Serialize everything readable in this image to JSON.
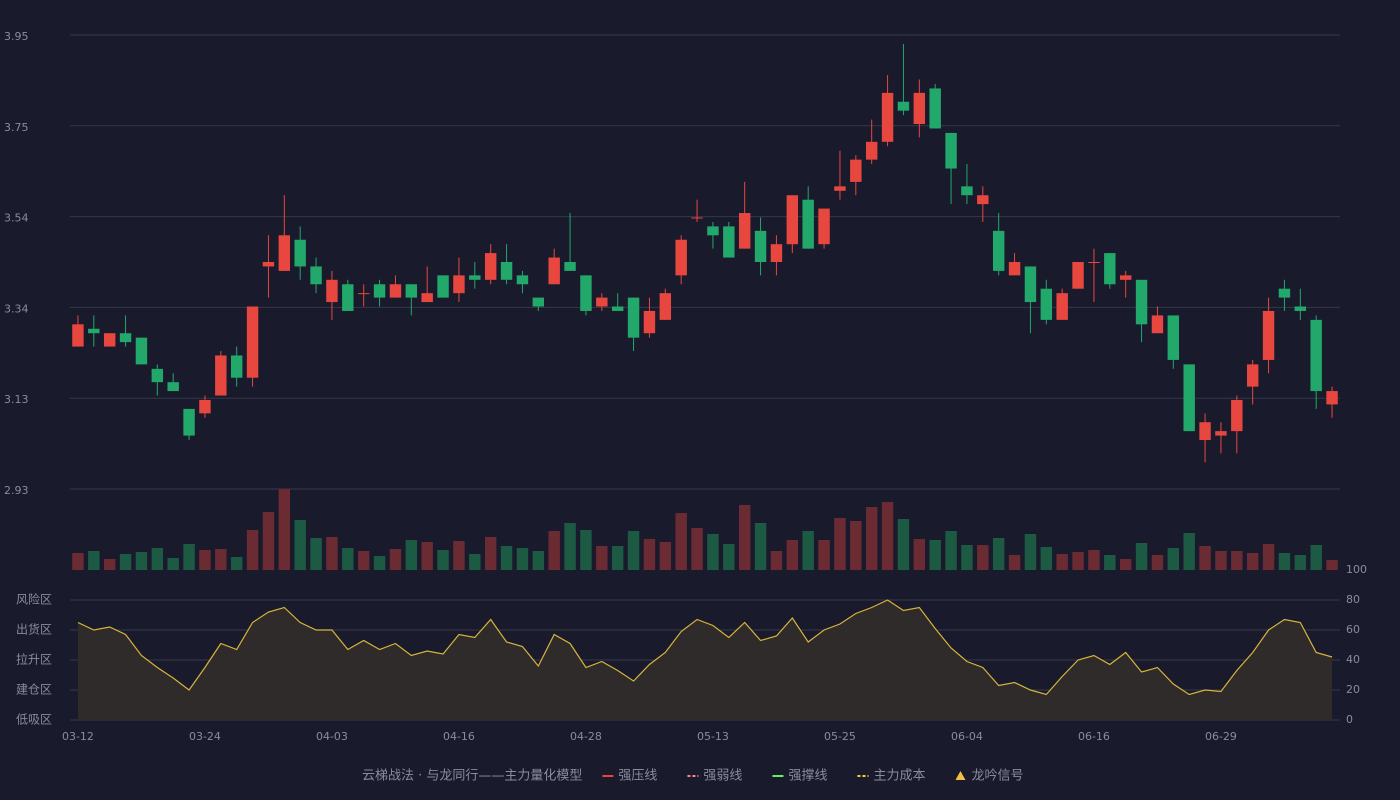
{
  "chart_data": {
    "type": "candlestick",
    "categories": [
      "03-12",
      null,
      null,
      null,
      null,
      null,
      null,
      null,
      "03-24",
      null,
      null,
      null,
      null,
      null,
      null,
      null,
      "04-03",
      null,
      null,
      null,
      null,
      null,
      null,
      null,
      "04-16",
      null,
      null,
      null,
      null,
      null,
      null,
      null,
      "04-28",
      null,
      null,
      null,
      null,
      null,
      null,
      null,
      "05-13",
      null,
      null,
      null,
      null,
      null,
      null,
      null,
      "05-25",
      null,
      null,
      null,
      null,
      null,
      null,
      null,
      "06-04",
      null,
      null,
      null,
      null,
      null,
      null,
      null,
      "06-16",
      null,
      null,
      null,
      null,
      null,
      null,
      null,
      "06-29",
      null,
      null,
      null,
      null,
      null,
      null,
      null
    ],
    "open": [
      3.25,
      3.29,
      3.25,
      3.28,
      3.27,
      3.2,
      3.17,
      3.11,
      3.1,
      3.14,
      3.23,
      3.18,
      3.43,
      3.42,
      3.49,
      3.43,
      3.35,
      3.39,
      3.37,
      3.39,
      3.36,
      3.39,
      3.35,
      3.41,
      3.37,
      3.41,
      3.4,
      3.44,
      3.41,
      3.36,
      3.39,
      3.44,
      3.41,
      3.34,
      3.34,
      3.36,
      3.28,
      3.31,
      3.41,
      3.54,
      3.52,
      3.52,
      3.47,
      3.51,
      3.44,
      3.48,
      3.58,
      3.48,
      3.6,
      3.62,
      3.67,
      3.71,
      3.8,
      3.75,
      3.83,
      3.73,
      3.61,
      3.57,
      3.51,
      3.41,
      3.43,
      3.38,
      3.31,
      3.38,
      3.44,
      3.46,
      3.4,
      3.4,
      3.28,
      3.32,
      3.21,
      3.04,
      3.05,
      3.06,
      3.16,
      3.22,
      3.38,
      3.34,
      3.31,
      3.12
    ],
    "close": [
      3.3,
      3.28,
      3.28,
      3.26,
      3.21,
      3.17,
      3.15,
      3.05,
      3.13,
      3.23,
      3.18,
      3.34,
      3.44,
      3.5,
      3.43,
      3.39,
      3.4,
      3.33,
      3.37,
      3.36,
      3.39,
      3.36,
      3.37,
      3.36,
      3.41,
      3.4,
      3.46,
      3.4,
      3.39,
      3.34,
      3.45,
      3.42,
      3.33,
      3.36,
      3.33,
      3.27,
      3.33,
      3.37,
      3.49,
      3.54,
      3.5,
      3.45,
      3.55,
      3.44,
      3.48,
      3.59,
      3.47,
      3.56,
      3.61,
      3.67,
      3.71,
      3.82,
      3.78,
      3.82,
      3.74,
      3.65,
      3.59,
      3.59,
      3.42,
      3.44,
      3.35,
      3.31,
      3.37,
      3.44,
      3.44,
      3.39,
      3.41,
      3.3,
      3.32,
      3.22,
      3.06,
      3.08,
      3.06,
      3.13,
      3.21,
      3.33,
      3.36,
      3.33,
      3.15,
      3.15
    ],
    "high": [
      3.32,
      3.32,
      3.28,
      3.32,
      3.27,
      3.21,
      3.19,
      3.11,
      3.14,
      3.24,
      3.25,
      3.34,
      3.5,
      3.59,
      3.52,
      3.45,
      3.42,
      3.4,
      3.39,
      3.4,
      3.41,
      3.39,
      3.43,
      3.41,
      3.45,
      3.44,
      3.48,
      3.48,
      3.42,
      3.36,
      3.47,
      3.55,
      3.41,
      3.37,
      3.37,
      3.36,
      3.36,
      3.38,
      3.5,
      3.58,
      3.53,
      3.53,
      3.62,
      3.54,
      3.5,
      3.59,
      3.61,
      3.56,
      3.69,
      3.68,
      3.76,
      3.86,
      3.93,
      3.85,
      3.84,
      3.73,
      3.66,
      3.61,
      3.55,
      3.46,
      3.43,
      3.4,
      3.38,
      3.44,
      3.47,
      3.46,
      3.42,
      3.4,
      3.34,
      3.32,
      3.21,
      3.1,
      3.08,
      3.14,
      3.22,
      3.36,
      3.4,
      3.38,
      3.32,
      3.16
    ],
    "low": [
      3.25,
      3.25,
      3.25,
      3.25,
      3.21,
      3.14,
      3.15,
      3.04,
      3.09,
      3.14,
      3.16,
      3.16,
      3.36,
      3.42,
      3.4,
      3.37,
      3.31,
      3.33,
      3.34,
      3.34,
      3.36,
      3.32,
      3.35,
      3.36,
      3.35,
      3.38,
      3.39,
      3.39,
      3.37,
      3.33,
      3.39,
      3.42,
      3.32,
      3.33,
      3.33,
      3.24,
      3.27,
      3.31,
      3.39,
      3.53,
      3.47,
      3.45,
      3.47,
      3.41,
      3.41,
      3.46,
      3.47,
      3.47,
      3.58,
      3.59,
      3.66,
      3.7,
      3.77,
      3.72,
      3.74,
      3.57,
      3.57,
      3.53,
      3.41,
      3.41,
      3.28,
      3.3,
      3.31,
      3.38,
      3.35,
      3.38,
      3.36,
      3.26,
      3.28,
      3.2,
      3.06,
      2.99,
      3.01,
      3.01,
      3.12,
      3.19,
      3.33,
      3.31,
      3.11,
      3.09
    ],
    "up_color": "#e8473f",
    "down_color": "#21a86a",
    "ylim": [
      2.93,
      3.95
    ],
    "yticks": [
      {
        "value": 3.95,
        "label": "3.95"
      },
      {
        "value": 3.746,
        "label": "3.75"
      },
      {
        "value": 3.542,
        "label": "3.54"
      },
      {
        "value": 3.338,
        "label": "3.34"
      },
      {
        "value": 3.134,
        "label": "3.13"
      },
      {
        "value": 2.93,
        "label": "2.93"
      }
    ],
    "grid": true,
    "volume": {
      "values": [
        17,
        19,
        11,
        16,
        18,
        22,
        12,
        26,
        20,
        21,
        13,
        40,
        58,
        81,
        50,
        32,
        33,
        22,
        19,
        14,
        21,
        30,
        28,
        20,
        29,
        16,
        33,
        24,
        22,
        19,
        39,
        47,
        40,
        24,
        24,
        39,
        31,
        28,
        57,
        42,
        36,
        26,
        65,
        47,
        19,
        30,
        39,
        30,
        52,
        49,
        63,
        68,
        51,
        31,
        30,
        39,
        25,
        25,
        32,
        15,
        36,
        23,
        16,
        18,
        20,
        15,
        11,
        27,
        15,
        22,
        37,
        24,
        19,
        19,
        17,
        26,
        17,
        15,
        25,
        10
      ],
      "up_color": "#6b2b32",
      "down_color": "#1d5a44"
    },
    "oscillator": {
      "values": [
        65,
        60,
        62,
        57,
        43,
        35,
        28,
        20,
        35,
        51,
        47,
        65,
        72,
        75,
        65,
        60,
        60,
        47,
        53,
        47,
        51,
        43,
        46,
        44,
        57,
        55,
        67,
        52,
        49,
        36,
        57,
        51,
        35,
        39,
        33,
        26,
        37,
        45,
        59,
        67,
        63,
        55,
        65,
        53,
        56,
        68,
        52,
        60,
        64,
        71,
        75,
        80,
        73,
        75,
        61,
        48,
        39,
        35,
        23,
        25,
        20,
        17,
        29,
        40,
        43,
        37,
        45,
        32,
        35,
        24,
        17,
        20,
        19,
        33,
        45,
        60,
        67,
        65,
        45,
        42
      ],
      "color": "#d8b43a",
      "fill": "#2e2b2a",
      "ylim": [
        0,
        100
      ],
      "yticks": [
        100,
        80,
        60,
        40,
        20,
        0
      ],
      "ytick_colors": [
        "#55e055",
        "#f0a030",
        "#e040e0",
        "#4a9cff",
        "#f08040",
        "#f04040"
      ],
      "zones": [
        {
          "label": "风险区",
          "color": "#f0a030"
        },
        {
          "label": "出货区",
          "color": "#e040e0"
        },
        {
          "label": "拉升区",
          "color": "#4a90ff"
        },
        {
          "label": "建仓区",
          "color": "#f05050"
        },
        {
          "label": "低吸区",
          "color": "#f04060"
        }
      ]
    },
    "title": "云梯战法 · 与龙同行——主力量化模型",
    "legend": [
      {
        "name": "强压线",
        "color": "#f04040",
        "style": "solid"
      },
      {
        "name": "强弱线",
        "color": "#ff8090",
        "style": "dashed"
      },
      {
        "name": "强撑线",
        "color": "#60f060",
        "style": "solid"
      },
      {
        "name": "主力成本",
        "color": "#f0d040",
        "style": "dashed"
      },
      {
        "name": "龙吟信号",
        "color": "#f0c040",
        "style": "triangle"
      }
    ]
  }
}
